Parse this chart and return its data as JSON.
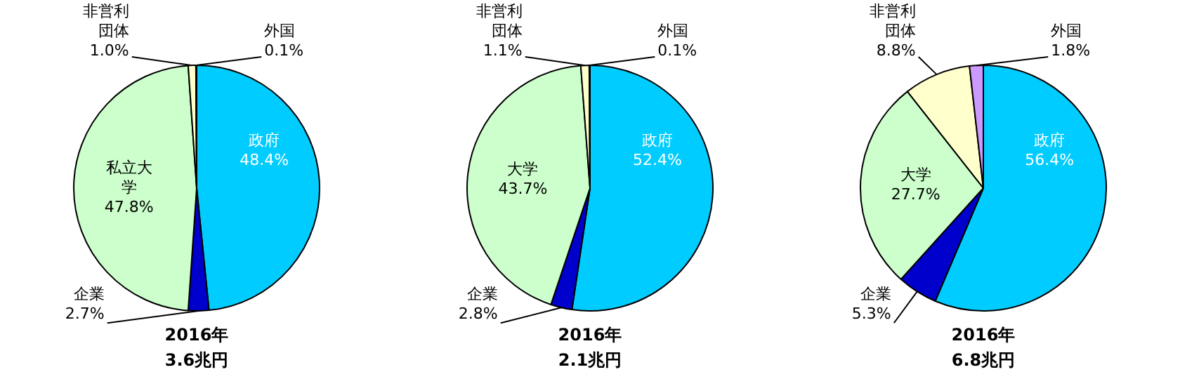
{
  "chart_data": [
    {
      "type": "pie",
      "categories": [
        "政府",
        "企業",
        "私立大学",
        "非営利団体",
        "外国"
      ],
      "values": [
        48.4,
        2.7,
        47.8,
        1.0,
        0.1
      ],
      "value_labels": [
        "48.4%",
        "2.7%",
        "47.8%",
        "1.0%",
        "0.1%"
      ],
      "colors": [
        "#00ccff",
        "#0000cc",
        "#ccffcc",
        "#ffffcc",
        "#cc99ff"
      ],
      "annotations": [
        "2016年",
        "3.6兆円"
      ]
    },
    {
      "type": "pie",
      "categories": [
        "政府",
        "企業",
        "大学",
        "非営利団体",
        "外国"
      ],
      "values": [
        52.4,
        2.8,
        43.7,
        1.1,
        0.1
      ],
      "value_labels": [
        "52.4%",
        "2.8%",
        "43.7%",
        "1.1%",
        "0.1%"
      ],
      "colors": [
        "#00ccff",
        "#0000cc",
        "#ccffcc",
        "#ffffcc",
        "#cc99ff"
      ],
      "annotations": [
        "2016年",
        "2.1兆円"
      ]
    },
    {
      "type": "pie",
      "categories": [
        "政府",
        "企業",
        "大学",
        "非営利団体",
        "外国"
      ],
      "values": [
        56.4,
        5.3,
        27.7,
        8.8,
        1.8
      ],
      "value_labels": [
        "56.4%",
        "5.3%",
        "27.7%",
        "8.8%",
        "1.8%"
      ],
      "colors": [
        "#00ccff",
        "#0000cc",
        "#ccffcc",
        "#ffffcc",
        "#cc99ff"
      ],
      "annotations": [
        "2016年",
        "6.8兆円"
      ]
    }
  ]
}
